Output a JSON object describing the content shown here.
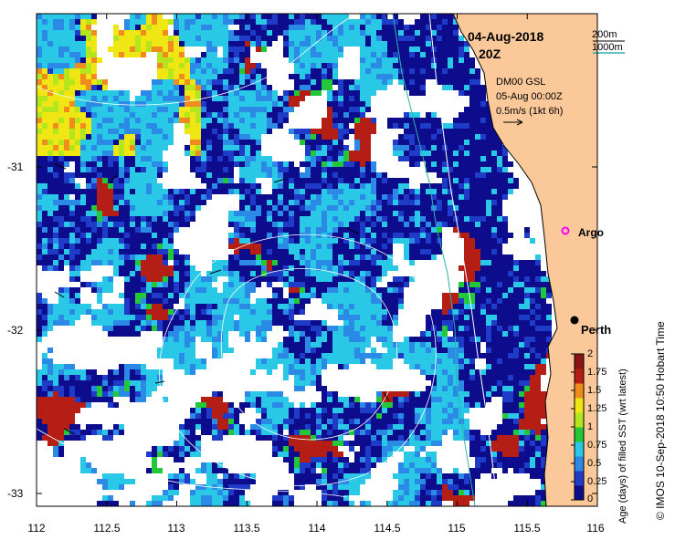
{
  "map": {
    "date": "04-Aug-2018",
    "time": "20Z",
    "isobath_legend": [
      "200m",
      "1000m"
    ],
    "isobath_colors": [
      "#000000",
      "#2ab5a8"
    ],
    "model": {
      "name": "DM00 GSL",
      "time": "05-Aug 00:00Z",
      "scale": "0.5m/s (1kt 6h)"
    },
    "locations": [
      {
        "name": "Argo",
        "lon": 115.84,
        "lat": -31.4
      },
      {
        "name": "Perth",
        "lon": 115.86,
        "lat": -31.95
      }
    ],
    "extent": {
      "lon": [
        112,
        116
      ],
      "lat": [
        -33.1,
        -30.1
      ]
    },
    "x_ticks": [
      "112",
      "112.5",
      "113",
      "113.5",
      "114",
      "114.5",
      "115",
      "115.5",
      "116"
    ],
    "y_ticks": [
      "-31",
      "-32",
      "-33"
    ],
    "credit": "© IMOS 10-Sep-2018 10:50 Hobart Time",
    "land_color": "#fbc89a",
    "no_data_color": "#ffffff"
  },
  "colorbar": {
    "title": "Age (days) of filled SST (wrt latest)",
    "range": [
      0,
      2
    ],
    "ticks": [
      "2",
      "1.75",
      "1.5",
      "1.25",
      "1",
      "0.75",
      "0.5",
      "0.25",
      "0"
    ],
    "colors": [
      "#0c0c8c",
      "#1e3cc8",
      "#2a8ae6",
      "#28c8e6",
      "#22c838",
      "#b4e61e",
      "#f0e614",
      "#f08c1e",
      "#b41e14",
      "#8c1414"
    ]
  }
}
